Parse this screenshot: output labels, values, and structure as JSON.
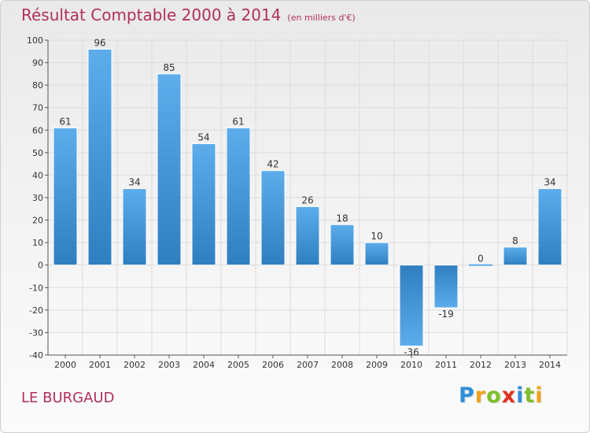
{
  "header": {
    "title": "Résultat Comptable 2000 à 2014",
    "subtitle": "(en milliers d'€)"
  },
  "footer": {
    "location": "LE BURGAUD",
    "brand": "Proxiti",
    "brand_letters": [
      {
        "ch": "P",
        "color": "#2f8fd8"
      },
      {
        "ch": "r",
        "color": "#f0a21a"
      },
      {
        "ch": "o",
        "color": "#7fbf2a"
      },
      {
        "ch": "x",
        "color": "#e0301e"
      },
      {
        "ch": "i",
        "color": "#2f8fd8"
      },
      {
        "ch": "t",
        "color": "#7fbf2a"
      },
      {
        "ch": "i",
        "color": "#f0a21a"
      }
    ]
  },
  "colors": {
    "bar_light": "#5dadec",
    "bar_dark": "#2f7fc0",
    "axis": "#555555",
    "grid": "#dcdcdc",
    "title": "#b0305a"
  },
  "chart_data": {
    "type": "bar",
    "categories": [
      "2000",
      "2001",
      "2002",
      "2003",
      "2004",
      "2005",
      "2006",
      "2007",
      "2008",
      "2009",
      "2010",
      "2011",
      "2012",
      "2013",
      "2014"
    ],
    "values": [
      61,
      96,
      34,
      85,
      54,
      61,
      42,
      26,
      18,
      10,
      -36,
      -19,
      0,
      8,
      34
    ],
    "data_labels": [
      "61",
      "96",
      "34",
      "85",
      "54",
      "61",
      "42",
      "26",
      "18",
      "10",
      "-36",
      "-19",
      "0",
      "8",
      "34"
    ],
    "title": "Résultat Comptable 2000 à 2014",
    "subtitle": "(en milliers d'€)",
    "xlabel": "",
    "ylabel": "",
    "ylim": [
      -40,
      100
    ],
    "yticks": [
      -40,
      -30,
      -20,
      -10,
      0,
      10,
      20,
      30,
      40,
      50,
      60,
      70,
      80,
      90,
      100
    ],
    "grid": true,
    "legend": "none"
  }
}
